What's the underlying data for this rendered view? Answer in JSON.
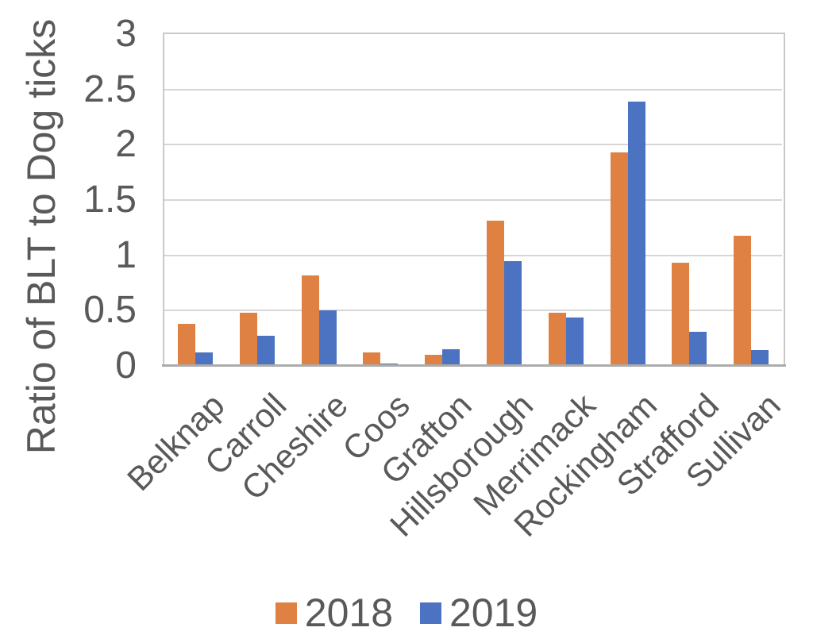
{
  "chart_data": {
    "type": "bar",
    "title": "",
    "ylabel": "Ratio of BLT to Dog ticks",
    "xlabel": "",
    "ylim": [
      0,
      3
    ],
    "ytick_values": [
      0,
      0.5,
      1,
      1.5,
      2,
      2.5,
      3
    ],
    "ytick_labels": [
      "0",
      "0.5",
      "1",
      "1.5",
      "2",
      "2.5",
      "3"
    ],
    "grid": "horizontal gridlines every 0.5, plot area bordered",
    "legend_position": "bottom-center",
    "x_label_rotation_deg": 45,
    "categories": [
      "Belknap",
      "Carroll",
      "Cheshire",
      "Coos",
      "Grafton",
      "Hillsborough",
      "Merrimack",
      "Rockingham",
      "Strafford",
      "Sullivan"
    ],
    "series": [
      {
        "name": "2018",
        "color": "#DF8142",
        "values": [
          0.38,
          0.48,
          0.82,
          0.12,
          0.1,
          1.31,
          0.48,
          1.93,
          0.93,
          1.18
        ]
      },
      {
        "name": "2019",
        "color": "#4C73C2",
        "values": [
          0.12,
          0.27,
          0.5,
          0.02,
          0.15,
          0.95,
          0.44,
          2.39,
          0.31,
          0.14
        ]
      }
    ],
    "colors": {
      "background": "#FFFFFF",
      "text": "#595959",
      "gridline": "#D6D6D6",
      "plot_border": "#C9C9C9",
      "axis_line": "#ACACAC"
    }
  }
}
